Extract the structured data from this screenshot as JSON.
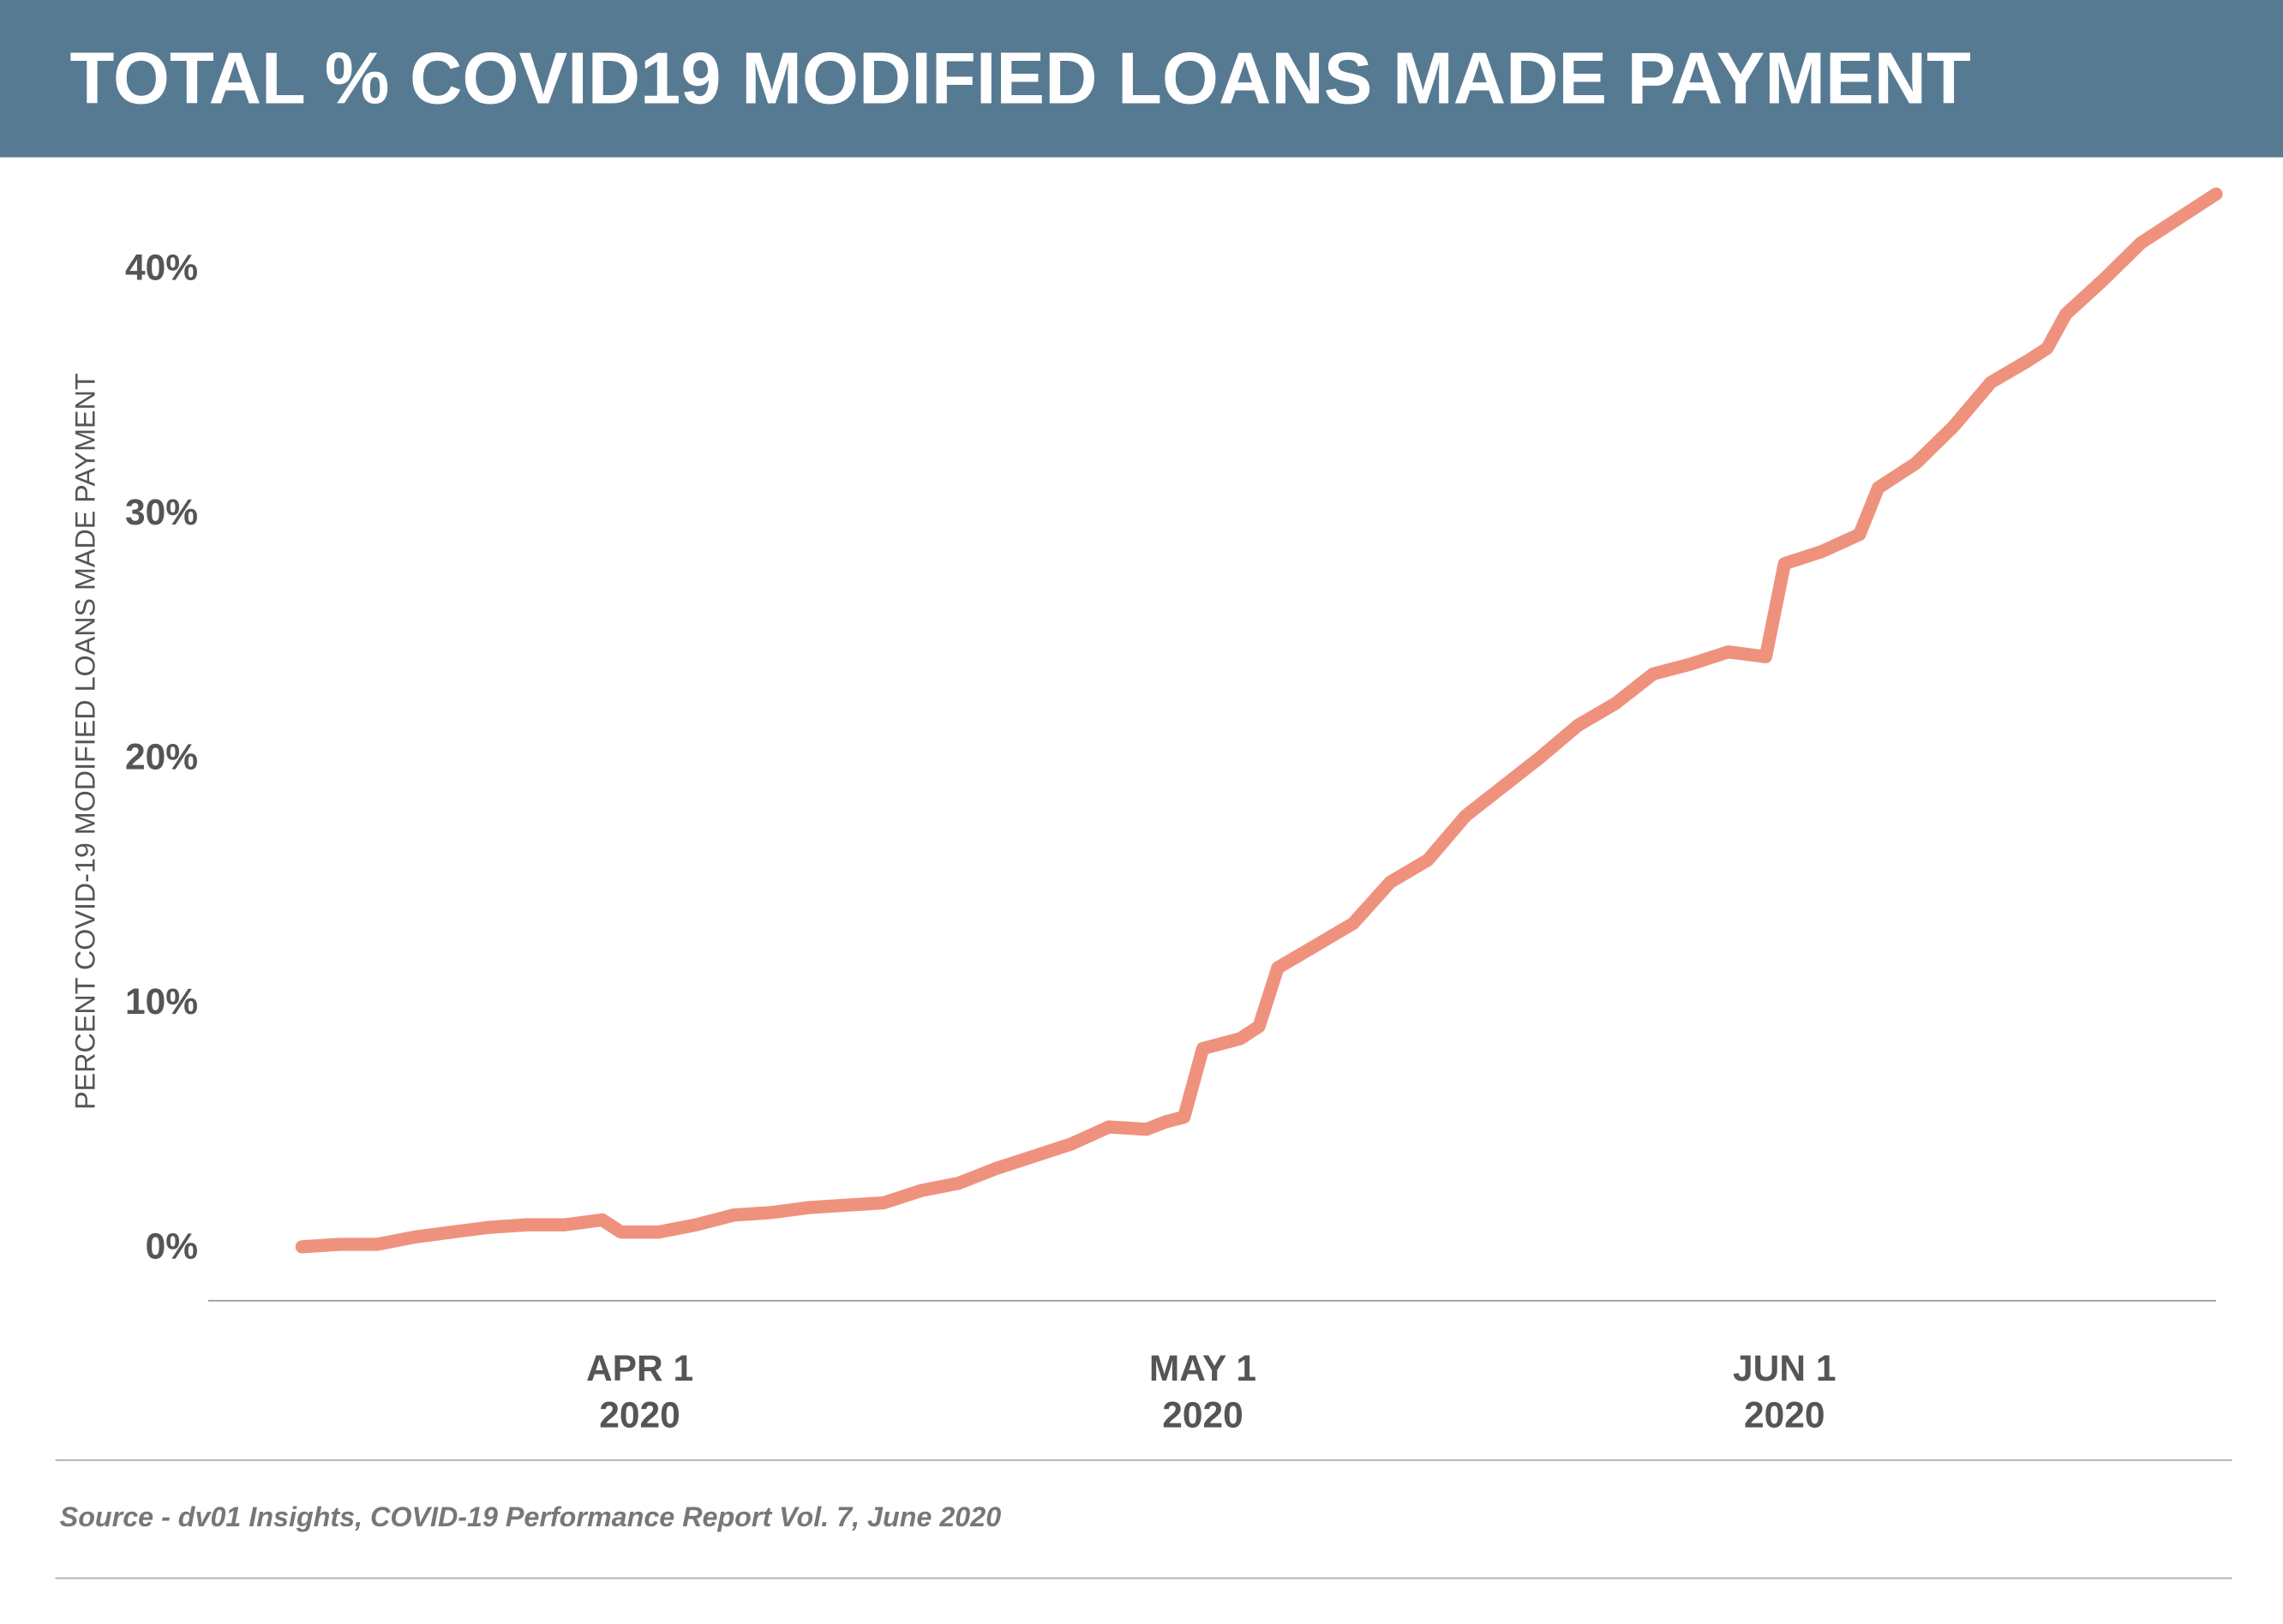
{
  "chart_data": {
    "type": "line",
    "title": "TOTAL % COVID19 MODIFIED LOANS MADE PAYMENT",
    "y_label": "PERCENT COVID-19 MODIFIED LOANS MADE PAYMENT",
    "source": "Source - dv01 Insights, COVID-19 Performance Report Vol. 7, June 2020",
    "color": "#ec8670",
    "x": [
      "2020-03-14",
      "2020-03-16",
      "2020-03-18",
      "2020-03-20",
      "2020-03-22",
      "2020-03-24",
      "2020-03-26",
      "2020-03-28",
      "2020-03-30",
      "2020-03-31",
      "2020-04-02",
      "2020-04-04",
      "2020-04-06",
      "2020-04-08",
      "2020-04-10",
      "2020-04-12",
      "2020-04-14",
      "2020-04-16",
      "2020-04-18",
      "2020-04-20",
      "2020-04-22",
      "2020-04-24",
      "2020-04-26",
      "2020-04-28",
      "2020-04-29",
      "2020-04-30",
      "2020-05-01",
      "2020-05-03",
      "2020-05-04",
      "2020-05-05",
      "2020-05-07",
      "2020-05-09",
      "2020-05-11",
      "2020-05-13",
      "2020-05-15",
      "2020-05-17",
      "2020-05-19",
      "2020-05-21",
      "2020-05-23",
      "2020-05-25",
      "2020-05-27",
      "2020-05-29",
      "2020-05-31",
      "2020-06-01",
      "2020-06-03",
      "2020-06-05",
      "2020-06-06",
      "2020-06-08",
      "2020-06-10",
      "2020-06-12",
      "2020-06-14",
      "2020-06-15",
      "2020-06-16",
      "2020-06-18",
      "2020-06-20",
      "2020-06-22",
      "2020-06-24"
    ],
    "values": [
      0.0,
      0.1,
      0.1,
      0.4,
      0.6,
      0.8,
      0.9,
      0.9,
      1.1,
      0.6,
      0.6,
      0.9,
      1.3,
      1.4,
      1.6,
      1.7,
      1.8,
      2.3,
      2.6,
      3.2,
      3.7,
      4.2,
      4.9,
      4.8,
      5.1,
      5.3,
      8.1,
      8.5,
      9.0,
      11.4,
      12.3,
      13.2,
      14.9,
      15.8,
      17.6,
      18.8,
      20.0,
      21.3,
      22.2,
      23.4,
      23.8,
      24.3,
      24.1,
      27.9,
      28.4,
      29.1,
      31.0,
      32.0,
      33.5,
      35.3,
      36.2,
      36.7,
      38.1,
      39.5,
      41.0,
      42.0,
      43.0
    ],
    "xlim": [
      "2020-03-09",
      "2020-06-24"
    ],
    "xticks": [
      {
        "value": "2020-04-01",
        "label": "APR 1\n2020"
      },
      {
        "value": "2020-05-01",
        "label": "MAY 1\n2020"
      },
      {
        "value": "2020-06-01",
        "label": "JUN 1\n2020"
      }
    ],
    "ylim": [
      -2.2,
      44.5
    ],
    "yticks": [
      {
        "value": 0,
        "label": "0%"
      },
      {
        "value": 10,
        "label": "10%"
      },
      {
        "value": 20,
        "label": "20%"
      },
      {
        "value": 30,
        "label": "30%"
      },
      {
        "value": 40,
        "label": "40%"
      }
    ],
    "grid": false
  }
}
